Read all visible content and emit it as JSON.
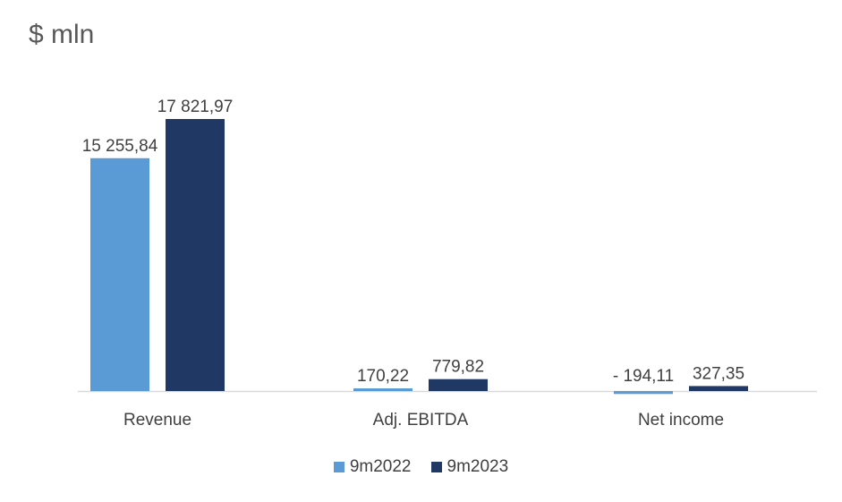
{
  "chart_data": {
    "type": "bar",
    "title": "$ mln",
    "categories": [
      "Revenue",
      "Adj. EBITDA",
      "Net income"
    ],
    "series": [
      {
        "name": "9m2022",
        "color": "#5B9BD5",
        "values": [
          15255.84,
          170.22,
          -194.11
        ],
        "labels": [
          "15 255,84",
          "170,22",
          "- 194,11"
        ]
      },
      {
        "name": "9m2023",
        "color": "#1F3864",
        "values": [
          17821.97,
          779.82,
          327.35
        ],
        "labels": [
          "17 821,97",
          "779,82",
          "327,35"
        ]
      }
    ],
    "xlabel": "",
    "ylabel": "",
    "grid": false,
    "legend_position": "bottom"
  }
}
